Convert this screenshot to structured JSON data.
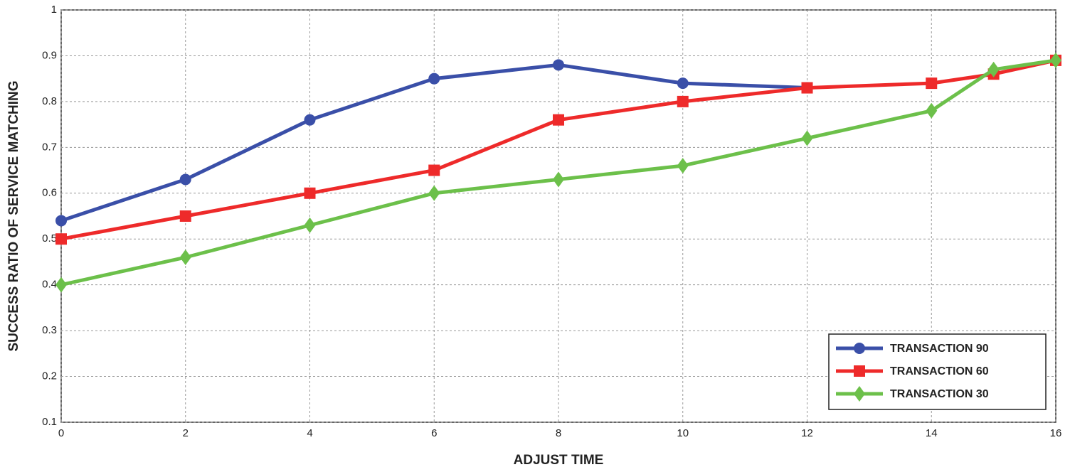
{
  "chart_data": {
    "type": "line",
    "x_label": "ADJUST TIME",
    "y_label": "SUCCESS RATIO OF SERVICE MATCHING",
    "x": [
      0,
      2,
      4,
      6,
      8,
      10,
      12,
      14,
      15,
      16
    ],
    "series": [
      {
        "name": "TRANSACTION 90",
        "color": "#3a4fa8",
        "marker": "circle",
        "values": [
          0.54,
          0.63,
          0.76,
          0.85,
          0.88,
          0.84,
          0.83,
          null,
          null,
          null
        ]
      },
      {
        "name": "TRANSACTION 60",
        "color": "#ee2a2a",
        "marker": "square",
        "values": [
          0.5,
          0.55,
          0.6,
          0.65,
          0.76,
          0.8,
          0.83,
          0.84,
          0.86,
          0.89
        ]
      },
      {
        "name": "TRANSACTION 30",
        "color": "#6cc04a",
        "marker": "diamond",
        "values": [
          0.4,
          0.46,
          0.53,
          0.6,
          0.63,
          0.66,
          0.72,
          0.78,
          0.87,
          0.89
        ]
      }
    ],
    "xlim": [
      0,
      16
    ],
    "xticks": [
      0,
      2,
      4,
      6,
      8,
      10,
      12,
      14,
      16
    ],
    "ylim": [
      0.1,
      1
    ],
    "yticks": [
      0.1,
      0.2,
      0.3,
      0.4,
      0.5,
      0.6,
      0.7,
      0.8,
      0.9,
      1
    ],
    "grid": true,
    "legend": "lower right"
  }
}
